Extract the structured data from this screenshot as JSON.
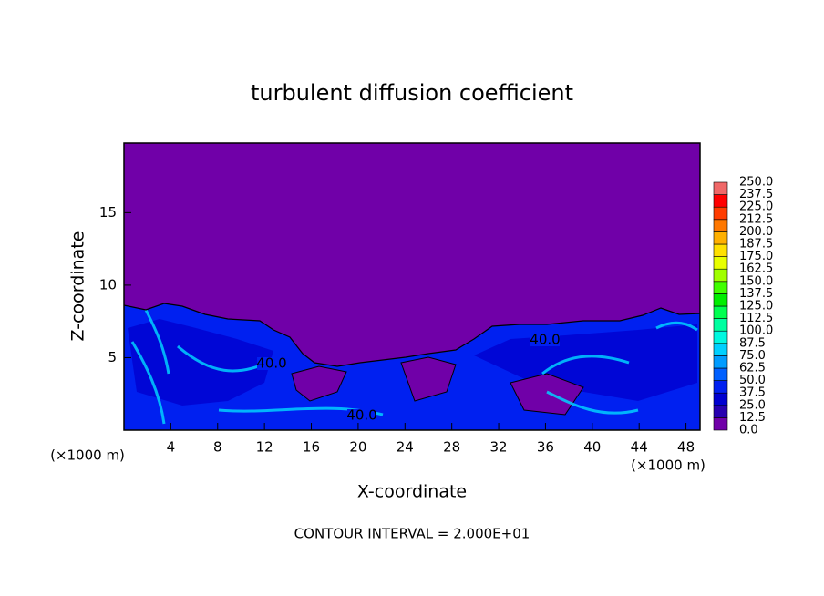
{
  "chart_data": {
    "type": "contour",
    "title": "turbulent diffusion coefficient",
    "xlabel": "X-coordinate",
    "ylabel": "Z-coordinate",
    "x_unit": "(×1000 m)",
    "footer": "CONTOUR INTERVAL = 2.000E+01",
    "xlim": [
      0,
      49.2
    ],
    "ylim": [
      0,
      19.8
    ],
    "xticks": [
      4,
      8,
      12,
      16,
      20,
      24,
      28,
      32,
      36,
      40,
      44,
      48
    ],
    "yticks": [
      5,
      10,
      15
    ],
    "contour_labels": [
      "40.0",
      "40.0",
      "40.0"
    ],
    "colorbar": {
      "lim": [
        0,
        250
      ],
      "ticks": [
        {
          "value": 0,
          "label": "0.0"
        },
        {
          "value": 12.5,
          "label": "12.5"
        },
        {
          "value": 25,
          "label": "25.0"
        },
        {
          "value": 37.5,
          "label": "37.5"
        },
        {
          "value": 50,
          "label": "50.0"
        },
        {
          "value": 62.5,
          "label": "62.5"
        },
        {
          "value": 75,
          "label": "75.0"
        },
        {
          "value": 87.5,
          "label": "87.5"
        },
        {
          "value": 100,
          "label": "100.0"
        },
        {
          "value": 112.5,
          "label": "112.5"
        },
        {
          "value": 125,
          "label": "125.0"
        },
        {
          "value": 137.5,
          "label": "137.5"
        },
        {
          "value": 150,
          "label": "150.0"
        },
        {
          "value": 162.5,
          "label": "162.5"
        },
        {
          "value": 175,
          "label": "175.0"
        },
        {
          "value": 187.5,
          "label": "187.5"
        },
        {
          "value": 200,
          "label": "200.0"
        },
        {
          "value": 212.5,
          "label": "212.5"
        },
        {
          "value": 225,
          "label": "225.0"
        },
        {
          "value": 237.5,
          "label": "237.5"
        },
        {
          "value": 250,
          "label": "250.0"
        }
      ],
      "colors": [
        "#7000a8",
        "#2800b0",
        "#0000d0",
        "#0020f0",
        "#0060ff",
        "#009cff",
        "#00d0ff",
        "#00f8e0",
        "#00ffa0",
        "#00ff50",
        "#00ee00",
        "#40ff00",
        "#a0ff00",
        "#e8ff00",
        "#ffe000",
        "#ffb000",
        "#ff7800",
        "#ff3c00",
        "#ff0000",
        "#f06868"
      ]
    }
  }
}
